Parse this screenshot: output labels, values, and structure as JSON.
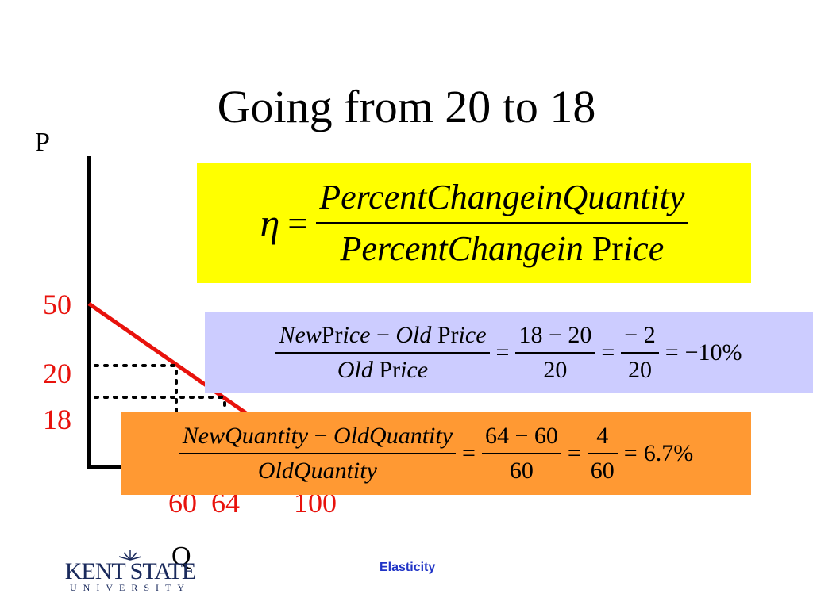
{
  "slide": {
    "title": "Going from 20 to 18",
    "footer": "Elasticity"
  },
  "logo": {
    "name": "KENT STATE",
    "subtitle": "UNIVERSITY"
  },
  "colors": {
    "curve": "#e8120c",
    "tick_labels": "#e8120c",
    "yellow_box": "#ffff00",
    "blue_box": "#ccccff",
    "orange_box": "#ff9933",
    "footer_text": "#1f33c6"
  },
  "chart_data": {
    "type": "line",
    "xlabel": "Q",
    "ylabel": "P",
    "y_ticks": [
      "50",
      "20",
      "18"
    ],
    "x_ticks": [
      "60",
      "64",
      "100"
    ],
    "series": [
      {
        "points": [
          [
            0,
            50
          ],
          [
            100,
            0
          ]
        ]
      }
    ],
    "reference_points": [
      [
        60,
        20
      ],
      [
        64,
        18
      ]
    ]
  },
  "formula_main": {
    "lhs": "η",
    "eq": "=",
    "numerator": "PercentChangeinQuantity",
    "denominator_a": "PercentChangein",
    "denominator_b": "Pr",
    "denominator_c": "ice"
  },
  "formula_price": {
    "num_a": "New",
    "num_b": "Pr",
    "num_c": "ice",
    "num_d": " − ",
    "num_e": "Old",
    "num_f": " Pr",
    "num_g": "ice",
    "den_a": "Old",
    "den_b": " Pr",
    "den_c": "ice",
    "eq1": "=",
    "frac2_num": "18 − 20",
    "frac2_den": "20",
    "eq2": "=",
    "frac3_num": "− 2",
    "frac3_den": "20",
    "eq3": "=",
    "result": "−10%"
  },
  "formula_quantity": {
    "num_a": "NewQuantity",
    "num_b": " − ",
    "num_c": "OldQuantity",
    "den": "OldQuantity",
    "eq1": "=",
    "frac2_num": "64 − 60",
    "frac2_den": "60",
    "eq2": "=",
    "frac3_num": "4",
    "frac3_den": "60",
    "eq3": "=",
    "result": "6.7%"
  }
}
